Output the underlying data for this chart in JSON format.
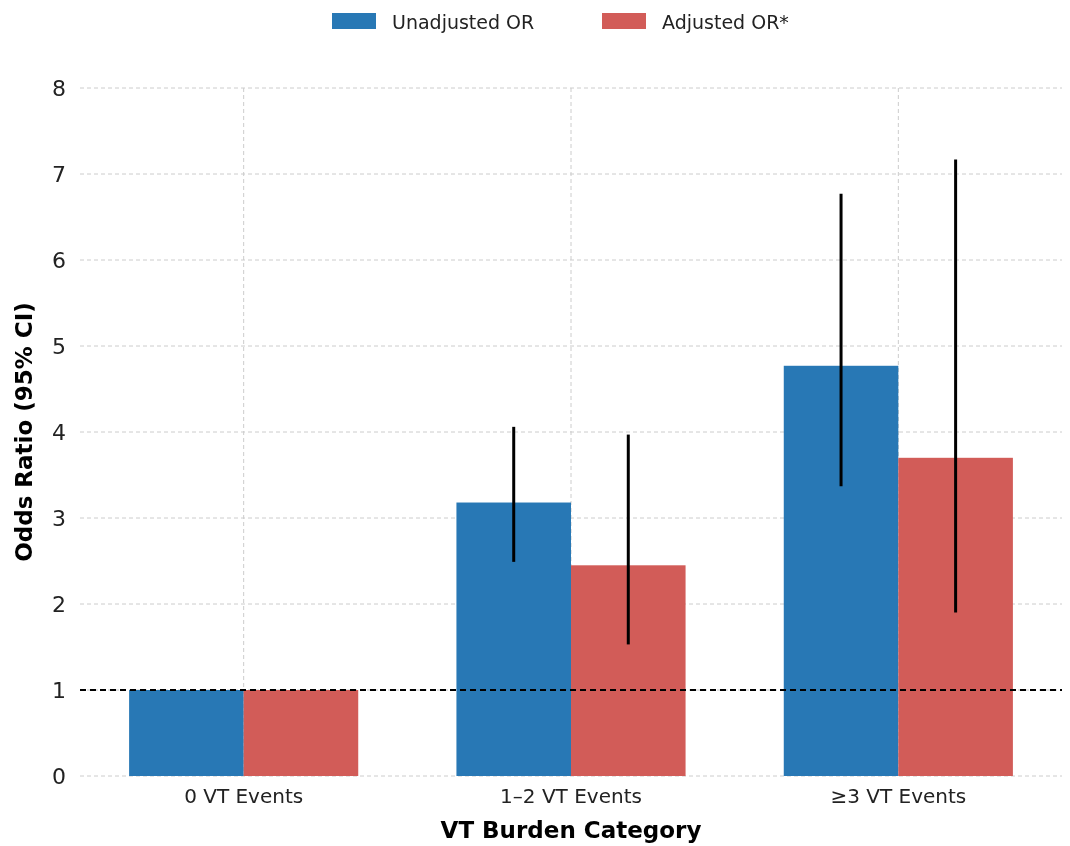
{
  "chart_data": {
    "type": "bar",
    "xlabel": "VT Burden Category",
    "ylabel": "Odds Ratio (95% CI)",
    "categories": [
      "0 VT Events",
      "1–2 VT Events",
      "≥3 VT Events"
    ],
    "series": [
      {
        "name": "Unadjusted OR",
        "color": "#2878b5",
        "values": [
          1.0,
          3.18,
          4.77
        ],
        "errors": [
          null,
          [
            2.49,
            4.06
          ],
          [
            3.37,
            6.77
          ]
        ]
      },
      {
        "name": "Adjusted OR*",
        "color": "#d25c58",
        "values": [
          1.0,
          2.45,
          3.7
        ],
        "errors": [
          null,
          [
            1.53,
            3.97
          ],
          [
            1.9,
            7.17
          ]
        ]
      }
    ],
    "ylim": [
      0,
      8
    ],
    "yticks": [
      0,
      1,
      2,
      3,
      4,
      5,
      6,
      7,
      8
    ],
    "grid": true,
    "legend": "top",
    "ref_lines": [
      {
        "axis": "y",
        "value": 1,
        "line_style": "dashed",
        "color": "#000000"
      }
    ]
  }
}
